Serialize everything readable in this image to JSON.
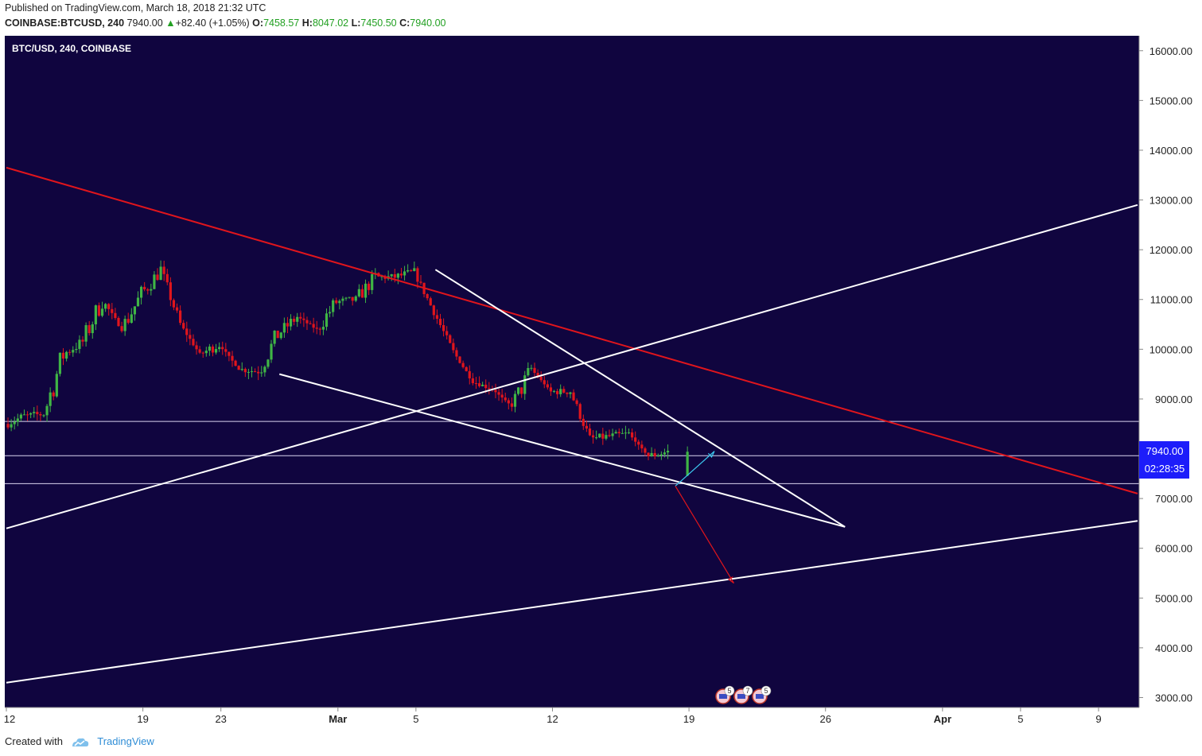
{
  "header": {
    "published": "Published on TradingView.com, March 18, 2018 21:32 UTC",
    "symbol": "COINBASE:BTCUSD, 240",
    "last": "7940.00",
    "change": "+82.40 (+1.05%)",
    "o_label": "O:",
    "o_value": "7458.57",
    "h_label": "H:",
    "h_value": "8047.02",
    "l_label": "L:",
    "l_value": "7450.50",
    "c_label": "C:",
    "c_value": "7940.00"
  },
  "footer": {
    "created_with": "Created with",
    "brand": "TradingView"
  },
  "colors": {
    "background": "#10053f",
    "bull": "#3fb545",
    "bear": "#e0151c",
    "trend_red": "#e0151c",
    "trend_white": "#ffffff",
    "arrow_blue": "#3cc9f0",
    "price_label": "#1d1dfa"
  },
  "chart_data": {
    "type": "candlestick",
    "title": "BTC/USD, 240, COINBASE",
    "y_ticks": [
      "16000.00",
      "15000.00",
      "14000.00",
      "13000.00",
      "12000.00",
      "11000.00",
      "10000.00",
      "9000.00",
      "7000.00",
      "6000.00",
      "5000.00",
      "4000.00",
      "3000.00"
    ],
    "x_ticks": [
      "12",
      "19",
      "23",
      "Mar",
      "5",
      "12",
      "19",
      "26",
      "Apr",
      "5",
      "9"
    ],
    "x_range": [
      "2018-02-12",
      "2018-04-11"
    ],
    "y_range": [
      2800,
      16300
    ],
    "current_price": "7940.00",
    "countdown": "02:28:35",
    "close_path": [
      [
        "2018-02-12",
        8500
      ],
      [
        "2018-02-13",
        8650
      ],
      [
        "2018-02-14",
        8700
      ],
      [
        "2018-02-15",
        9900
      ],
      [
        "2018-02-16",
        10150
      ],
      [
        "2018-02-17",
        11000
      ],
      [
        "2018-02-18",
        10400
      ],
      [
        "2018-02-19",
        11100
      ],
      [
        "2018-02-20",
        11600
      ],
      [
        "2018-02-21",
        10500
      ],
      [
        "2018-02-22",
        9900
      ],
      [
        "2018-02-23",
        10100
      ],
      [
        "2018-02-24",
        9600
      ],
      [
        "2018-02-25",
        9550
      ],
      [
        "2018-02-26",
        10300
      ],
      [
        "2018-02-27",
        10650
      ],
      [
        "2018-02-28",
        10400
      ],
      [
        "2018-03-01",
        10950
      ],
      [
        "2018-03-02",
        11000
      ],
      [
        "2018-03-03",
        11450
      ],
      [
        "2018-03-04",
        11450
      ],
      [
        "2018-03-05",
        11550
      ],
      [
        "2018-03-06",
        10750
      ],
      [
        "2018-03-07",
        9950
      ],
      [
        "2018-03-08",
        9350
      ],
      [
        "2018-03-09",
        9200
      ],
      [
        "2018-03-10",
        8850
      ],
      [
        "2018-03-11",
        9600
      ],
      [
        "2018-03-12",
        9150
      ],
      [
        "2018-03-13",
        9150
      ],
      [
        "2018-03-14",
        8200
      ],
      [
        "2018-03-15",
        8250
      ],
      [
        "2018-03-16",
        8300
      ],
      [
        "2018-03-17",
        7850
      ],
      [
        "2018-03-18",
        7940
      ]
    ],
    "horizontal_levels": [
      8550,
      7860,
      7300
    ],
    "trendlines": [
      {
        "color": "red",
        "from": [
          "2018-02-12",
          13650
        ],
        "to": [
          "2018-04-11",
          7100
        ]
      },
      {
        "color": "white",
        "from": [
          "2018-02-12",
          6400
        ],
        "to": [
          "2018-04-11",
          12900
        ]
      },
      {
        "color": "white",
        "from": [
          "2018-02-12",
          3300
        ],
        "to": [
          "2018-04-11",
          6550
        ]
      },
      {
        "color": "white",
        "from": [
          "2018-02-26",
          9500
        ],
        "to": [
          "2018-03-27",
          6430
        ]
      },
      {
        "color": "white",
        "from": [
          "2018-03-06",
          11600
        ],
        "to": [
          "2018-03-27",
          6430
        ]
      }
    ],
    "arrows": [
      {
        "color": "blue",
        "from": [
          "2018-03-18",
          7250
        ],
        "to": [
          "2018-03-20",
          7950
        ]
      },
      {
        "color": "red",
        "from": [
          "2018-03-18",
          7250
        ],
        "to": [
          "2018-03-21",
          5300
        ]
      }
    ],
    "event_markers": [
      "5",
      "7",
      "5"
    ]
  }
}
